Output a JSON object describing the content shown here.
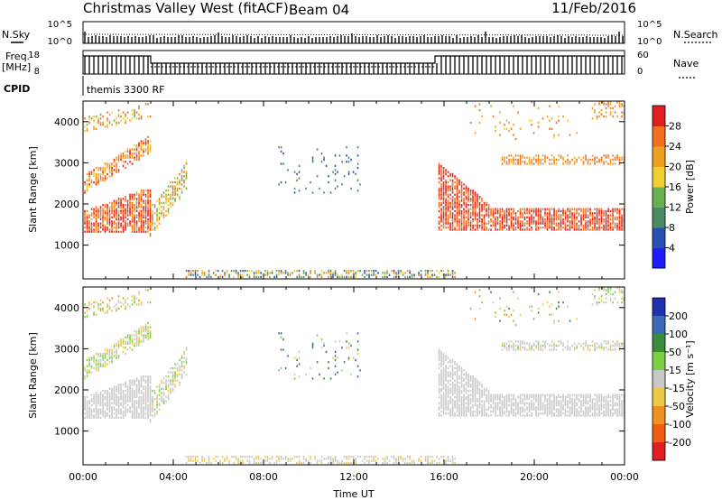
{
  "header": {
    "title": "Christmas Valley West (fitACF)",
    "beam": "Beam 04",
    "date": "11/Feb/2016"
  },
  "top_panels": {
    "nsky_label": "N.Sky",
    "nsearch_label": "N.Search",
    "freq_label_line1": "Freq.",
    "freq_label_line2": "[MHz]",
    "nave_label": "Nave",
    "cpid_label": "CPID",
    "cpid_value": "themis 3300 RF",
    "noise_ticks_left": [
      "10^5",
      "10^0"
    ],
    "noise_ticks_right": [
      "10^5",
      "10^0"
    ],
    "freq_ticks": [
      "18",
      "8"
    ],
    "nave_ticks": [
      "60",
      "0"
    ]
  },
  "colors": {
    "power": [
      "#1c1cff",
      "#2850b4",
      "#4a8a64",
      "#6ab050",
      "#f0d030",
      "#f0a020",
      "#f07020",
      "#e02020"
    ],
    "velocity": [
      "#2030b0",
      "#3a6ab8",
      "#3c8a3c",
      "#7ad040",
      "#c8c8c8",
      "#f0c848",
      "#f09020",
      "#f06010",
      "#e02020"
    ]
  },
  "chart_data": [
    {
      "type": "heatmap",
      "title": "",
      "xlabel": "",
      "ylabel": "Slant Range [km]",
      "x_ticks": [
        "00:00",
        "04:00",
        "08:00",
        "12:00",
        "16:00",
        "20:00",
        "00:00"
      ],
      "y_ticks": [
        "1000",
        "2000",
        "3000",
        "4000"
      ],
      "xlim_hours": [
        0,
        24
      ],
      "ylim_km": [
        180,
        4500
      ],
      "colorbar": {
        "label": "Power [dB]",
        "ticks": [
          "4",
          "8",
          "12",
          "16",
          "20",
          "24",
          "28"
        ],
        "range": [
          0,
          32
        ]
      }
    },
    {
      "type": "heatmap",
      "title": "",
      "xlabel": "Time UT",
      "ylabel": "Slant Range [km]",
      "x_ticks": [
        "00:00",
        "04:00",
        "08:00",
        "12:00",
        "16:00",
        "20:00",
        "00:00"
      ],
      "y_ticks": [
        "1000",
        "2000",
        "3000",
        "4000"
      ],
      "xlim_hours": [
        0,
        24
      ],
      "ylim_km": [
        180,
        4500
      ],
      "colorbar": {
        "label": "Velocity [m s⁻¹]",
        "ticks": [
          "200",
          "100",
          "50",
          "15",
          "-15",
          "-50",
          "-100",
          "-200"
        ]
      }
    }
  ]
}
